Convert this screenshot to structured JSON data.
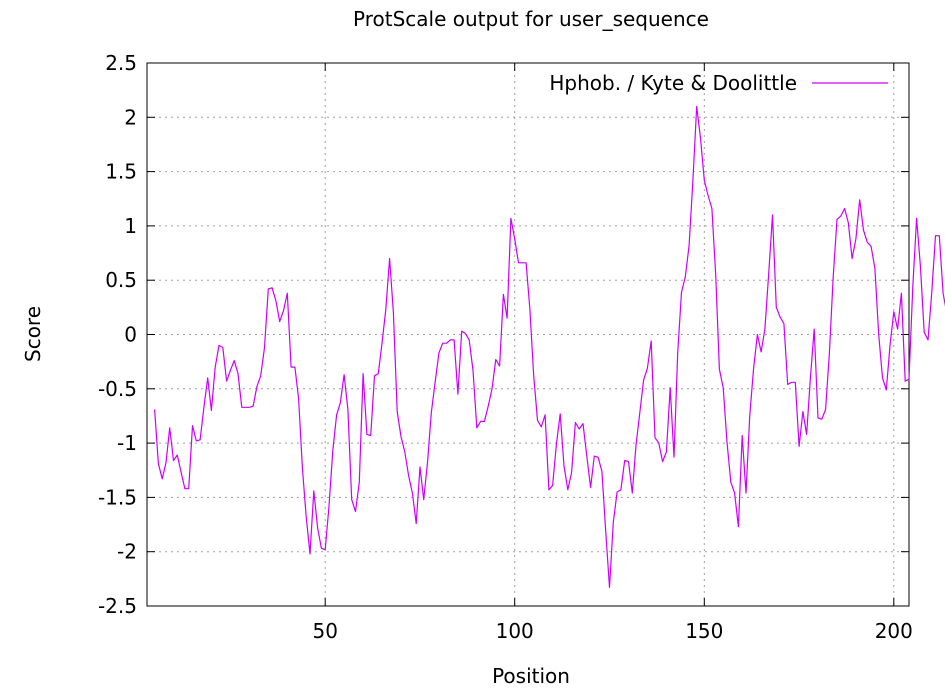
{
  "chart_data": {
    "type": "line",
    "title": "ProtScale output for user_sequence",
    "xlabel": "Position",
    "ylabel": "Score",
    "xlim": [
      3,
      204
    ],
    "ylim": [
      -2.5,
      2.5
    ],
    "x_ticks": [
      50,
      100,
      150,
      200
    ],
    "y_ticks": [
      -2.5,
      -2,
      -1.5,
      -1,
      -0.5,
      0,
      0.5,
      1,
      1.5,
      2,
      2.5
    ],
    "x_tick_labels": [
      "50",
      "100",
      "150",
      "200"
    ],
    "y_tick_labels": [
      "-2.5",
      "-2",
      "-1.5",
      "-1",
      "-0.5",
      "0",
      "0.5",
      "1",
      "1.5",
      "2",
      "2.5"
    ],
    "grid": true,
    "legend_position": "top-right",
    "series": [
      {
        "name": "Hphob. / Kyte & Doolittle",
        "color": "#cc00ff",
        "x_start": 5,
        "values": [
          -0.69,
          -1.19,
          -1.33,
          -1.18,
          -0.86,
          -1.16,
          -1.11,
          -1.27,
          -1.42,
          -1.42,
          -0.84,
          -0.98,
          -0.97,
          -0.67,
          -0.4,
          -0.7,
          -0.3,
          -0.1,
          -0.12,
          -0.43,
          -0.33,
          -0.24,
          -0.36,
          -0.67,
          -0.67,
          -0.67,
          -0.66,
          -0.48,
          -0.38,
          -0.12,
          0.42,
          0.43,
          0.31,
          0.12,
          0.22,
          0.38,
          -0.3,
          -0.3,
          -0.59,
          -1.23,
          -1.68,
          -2.02,
          -1.44,
          -1.78,
          -1.97,
          -1.98,
          -1.58,
          -1.07,
          -0.74,
          -0.63,
          -0.37,
          -0.69,
          -1.52,
          -1.63,
          -1.36,
          -0.36,
          -0.92,
          -0.93,
          -0.38,
          -0.36,
          -0.08,
          0.23,
          0.7,
          0.2,
          -0.71,
          -0.94,
          -1.08,
          -1.3,
          -1.46,
          -1.74,
          -1.22,
          -1.52,
          -1.18,
          -0.72,
          -0.44,
          -0.17,
          -0.08,
          -0.08,
          -0.05,
          -0.05,
          -0.55,
          0.03,
          0.01,
          -0.05,
          -0.33,
          -0.86,
          -0.8,
          -0.8,
          -0.66,
          -0.5,
          -0.23,
          -0.29,
          0.37,
          0.15,
          1.07,
          0.88,
          0.66,
          0.66,
          0.66,
          0.23,
          -0.38,
          -0.79,
          -0.85,
          -0.74,
          -1.43,
          -1.39,
          -1.01,
          -0.73,
          -1.21,
          -1.43,
          -1.27,
          -0.81,
          -0.87,
          -0.82,
          -1.12,
          -1.41,
          -1.12,
          -1.13,
          -1.26,
          -1.81,
          -2.33,
          -1.73,
          -1.45,
          -1.43,
          -1.16,
          -1.17,
          -1.46,
          -1.02,
          -0.72,
          -0.42,
          -0.31,
          -0.06,
          -0.95,
          -1.0,
          -1.17,
          -1.08,
          -0.49,
          -1.13,
          -0.17,
          0.39,
          0.53,
          0.82,
          1.42,
          2.1,
          1.81,
          1.42,
          1.28,
          1.16,
          0.55,
          -0.32,
          -0.49,
          -0.99,
          -1.36,
          -1.46,
          -1.77,
          -0.93,
          -1.46,
          -0.74,
          -0.31,
          0.0,
          -0.16,
          0.05,
          0.56,
          1.1,
          0.25,
          0.16,
          0.1,
          -0.46,
          -0.44,
          -0.44,
          -1.03,
          -0.71,
          -0.92,
          -0.4,
          0.05,
          -0.77,
          -0.78,
          -0.69,
          -0.17,
          0.53,
          1.06,
          1.09,
          1.16,
          1.03,
          0.7,
          0.88,
          1.24,
          0.96,
          0.85,
          0.81,
          0.61,
          0.0,
          -0.4,
          -0.51,
          -0.1,
          0.21,
          0.05,
          0.38,
          -0.43,
          -0.41,
          0.44,
          1.07,
          0.63,
          0.02,
          -0.05,
          0.38,
          0.91,
          0.91,
          0.38,
          0.19,
          0.09,
          0.47
        ]
      }
    ]
  }
}
